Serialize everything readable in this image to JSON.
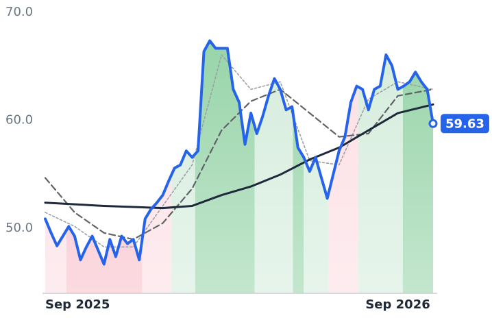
{
  "chart_data": {
    "type": "line",
    "xlim": [
      0,
      13.2
    ],
    "ylim": [
      43.9,
      70
    ],
    "xticks": [
      {
        "value": 0,
        "label": "Sep 2025"
      },
      {
        "value": 12,
        "label": "Sep 2026"
      }
    ],
    "yticks": [
      {
        "value": 50,
        "label": "50.0"
      },
      {
        "value": 60,
        "label": "60.0"
      },
      {
        "value": 70,
        "label": "70.0"
      }
    ],
    "grid": false,
    "zones": [
      {
        "from": 0,
        "to": 0.72,
        "color": "#fcdde3"
      },
      {
        "from": 0.72,
        "to": 3.3,
        "color": "#f8bcc8"
      },
      {
        "from": 3.3,
        "to": 4.3,
        "color": "#fcdde3"
      },
      {
        "from": 4.3,
        "to": 5.1,
        "color": "#d3ecdb"
      },
      {
        "from": 5.1,
        "to": 7.13,
        "color": "#93d2a5"
      },
      {
        "from": 7.13,
        "to": 8.43,
        "color": "#d3ecdb"
      },
      {
        "from": 8.43,
        "to": 8.8,
        "color": "#93d2a5"
      },
      {
        "from": 8.8,
        "to": 9.63,
        "color": "#d3ecdb"
      },
      {
        "from": 9.63,
        "to": 10.65,
        "color": "#fcdde3"
      },
      {
        "from": 10.65,
        "to": 12.17,
        "color": "#d3ecdb"
      },
      {
        "from": 12.17,
        "to": 13.2,
        "color": "#93d2a5"
      }
    ],
    "series": [
      {
        "color": "#9aa0a6",
        "style": "dotted",
        "x": [
          0,
          1,
          2,
          3,
          4,
          5,
          6,
          7,
          8,
          9,
          10,
          11,
          12,
          13.2
        ],
        "values": [
          51.4,
          50.1,
          48.2,
          48.2,
          52.0,
          55.8,
          66.0,
          62.8,
          63.5,
          56.2,
          55.8,
          61.9,
          63.5,
          62.8
        ]
      },
      {
        "color": "#5f6368",
        "style": "dashed",
        "x": [
          0,
          1,
          2,
          3,
          4,
          5,
          6,
          7,
          8,
          9,
          10,
          11,
          12,
          13.2
        ],
        "values": [
          54.6,
          51.4,
          49.5,
          48.9,
          50.4,
          53.6,
          59.0,
          61.7,
          62.8,
          60.6,
          58.4,
          58.7,
          62.2,
          62.8
        ]
      },
      {
        "color": "#1e293b",
        "style": "solid",
        "x": [
          0,
          2,
          3,
          4,
          5,
          6,
          7,
          8,
          9,
          10,
          11,
          12,
          13.2
        ],
        "values": [
          52.3,
          52.0,
          51.9,
          51.8,
          52.0,
          53.0,
          53.8,
          54.9,
          56.3,
          57.4,
          59.0,
          60.6,
          61.4
        ]
      },
      {
        "color": "#2563eb",
        "style": "price",
        "x": [
          0,
          0.2,
          0.4,
          0.6,
          0.8,
          1.0,
          1.2,
          1.4,
          1.6,
          1.8,
          2.0,
          2.2,
          2.4,
          2.6,
          2.8,
          3.0,
          3.2,
          3.4,
          3.6,
          3.8,
          4.0,
          4.2,
          4.4,
          4.6,
          4.8,
          5.0,
          5.2,
          5.4,
          5.6,
          5.8,
          6.0,
          6.2,
          6.4,
          6.6,
          6.8,
          7.0,
          7.2,
          7.4,
          7.6,
          7.8,
          8.0,
          8.2,
          8.4,
          8.6,
          8.8,
          9.0,
          9.2,
          9.4,
          9.6,
          9.8,
          10.0,
          10.2,
          10.4,
          10.6,
          10.8,
          11.0,
          11.2,
          11.4,
          11.6,
          11.8,
          12.0,
          12.2,
          12.4,
          12.6,
          12.8,
          13.0,
          13.2
        ],
        "values": [
          50.8,
          49.5,
          48.3,
          49.2,
          50.1,
          49.2,
          47.0,
          48.2,
          49.2,
          47.9,
          46.6,
          48.9,
          47.3,
          49.2,
          48.5,
          48.9,
          47.0,
          50.8,
          51.7,
          52.3,
          53.0,
          54.3,
          55.5,
          55.8,
          57.1,
          56.5,
          57.1,
          66.3,
          67.3,
          66.6,
          66.6,
          66.6,
          62.8,
          61.6,
          57.7,
          60.6,
          58.7,
          60.3,
          62.2,
          63.8,
          62.8,
          60.9,
          61.2,
          57.4,
          56.5,
          55.2,
          56.5,
          54.6,
          52.7,
          54.9,
          57.1,
          58.4,
          61.6,
          63.1,
          62.8,
          60.9,
          62.8,
          63.1,
          66.0,
          65.0,
          62.8,
          63.1,
          63.5,
          64.4,
          63.5,
          62.8,
          59.63
        ]
      }
    ]
  }
}
